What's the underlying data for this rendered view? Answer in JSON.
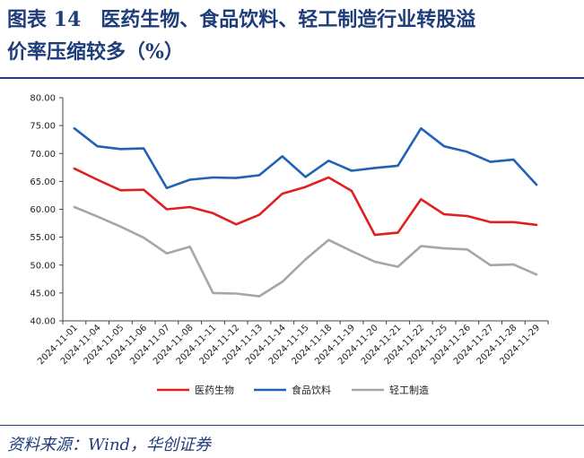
{
  "header": {
    "title_line1": "图表 14　医药生物、食品饮料、轻工制造行业转股溢",
    "title_line2": "价率压缩较多（%）"
  },
  "footer": {
    "source": "资料来源：Wind，华创证券"
  },
  "chart_data": {
    "type": "line",
    "title": "",
    "xlabel": "",
    "ylabel": "",
    "ylim": [
      40,
      80
    ],
    "yticks": [
      "80.00",
      "75.00",
      "70.00",
      "65.00",
      "60.00",
      "55.00",
      "50.00",
      "45.00",
      "40.00"
    ],
    "grid": false,
    "legend_position": "bottom",
    "categories": [
      "2024-11-01",
      "2024-11-04",
      "2024-11-05",
      "2024-11-06",
      "2024-11-07",
      "2024-11-08",
      "2024-11-11",
      "2024-11-12",
      "2024-11-13",
      "2024-11-14",
      "2024-11-15",
      "2024-11-18",
      "2024-11-19",
      "2024-11-20",
      "2024-11-21",
      "2024-11-22",
      "2024-11-25",
      "2024-11-26",
      "2024-11-27",
      "2024-11-28",
      "2024-11-29"
    ],
    "series": [
      {
        "name": "医药生物",
        "color": "#e02020",
        "values": [
          67.3,
          65.3,
          63.4,
          63.5,
          60.0,
          60.4,
          59.3,
          57.3,
          59.0,
          62.8,
          64.0,
          65.7,
          63.3,
          55.4,
          55.8,
          61.8,
          59.1,
          58.8,
          57.7,
          57.7,
          57.2
        ]
      },
      {
        "name": "食品饮料",
        "color": "#1f63b5",
        "values": [
          74.5,
          71.3,
          70.8,
          70.9,
          63.8,
          65.3,
          65.7,
          65.6,
          66.1,
          69.5,
          65.8,
          68.7,
          66.9,
          67.4,
          67.8,
          74.5,
          71.3,
          70.3,
          68.5,
          68.9,
          64.4
        ]
      },
      {
        "name": "轻工制造",
        "color": "#a6a6a6",
        "values": [
          60.4,
          58.7,
          56.9,
          54.9,
          52.1,
          53.3,
          45.0,
          44.9,
          44.4,
          47.0,
          51.0,
          54.5,
          52.5,
          50.6,
          49.7,
          53.4,
          53.0,
          52.8,
          50.0,
          50.1,
          48.3
        ]
      }
    ]
  }
}
